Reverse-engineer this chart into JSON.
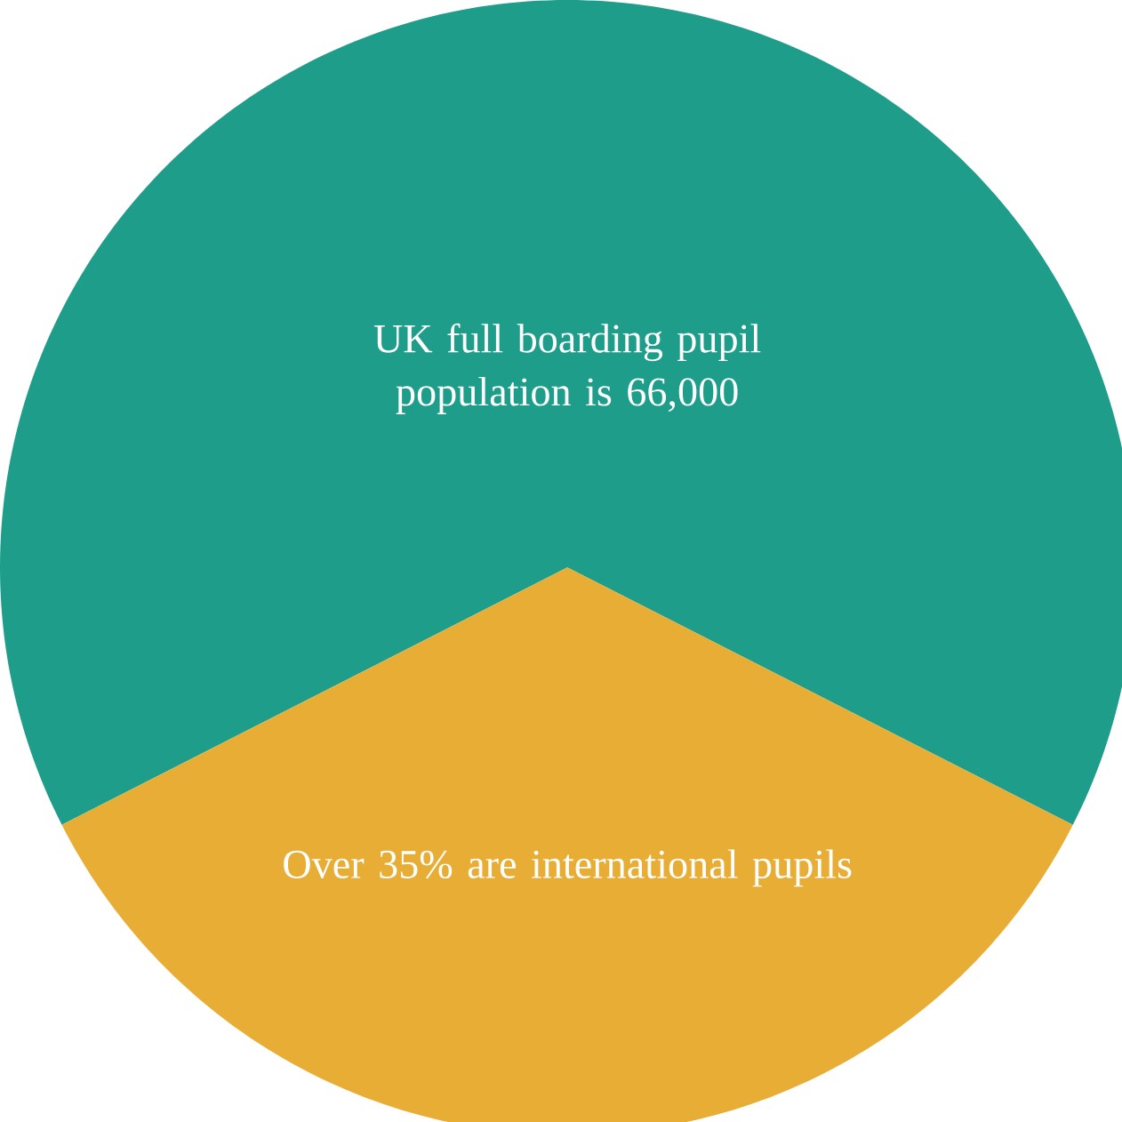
{
  "chart_data": {
    "type": "pie",
    "categories": [
      "UK full boarding pupil population is 66,000",
      "Over 35% are international pupils"
    ],
    "values": [
      65,
      35
    ],
    "colors": [
      "#1e9e8a",
      "#e8ad35"
    ]
  }
}
